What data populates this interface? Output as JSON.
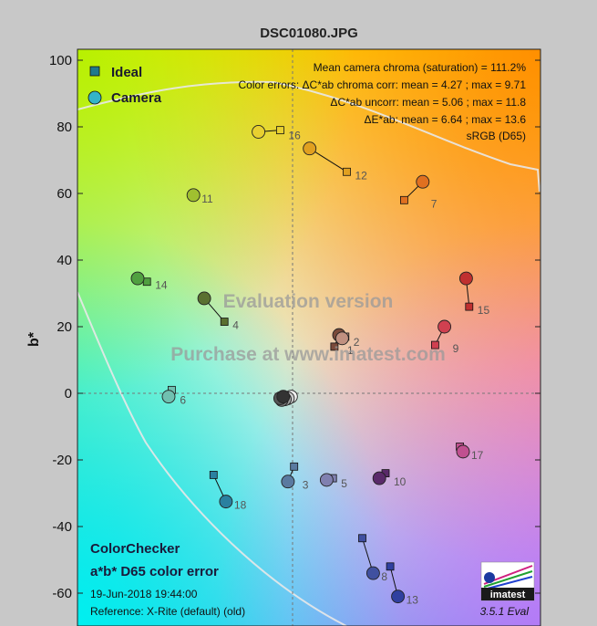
{
  "chart_data": {
    "type": "scatter",
    "title": "DSC01080.JPG",
    "ylabel": "b*",
    "xlim": [
      -70,
      80
    ],
    "ylim": [
      -70,
      100
    ],
    "yticks": [
      100,
      80,
      60,
      40,
      20,
      0,
      -20,
      -40,
      -60
    ],
    "grid": "dashed zero lines",
    "legend_position": "top-left",
    "legend": {
      "ideal": "Ideal",
      "camera": "Camera"
    },
    "annotations": [
      "Mean camera chroma (saturation) = 111.2%",
      "Color errors: ΔC*ab chroma corr:  mean = 4.27 ;  max = 9.71",
      "ΔC*ab uncorr:  mean = 5.06 ;  max = 11.8",
      "ΔE*ab:  mean = 6.64 ;  max = 13.6",
      "sRGB (D65)"
    ],
    "watermark": [
      "Evaluation version",
      "Purchase at www.imatest.com"
    ],
    "footer": {
      "name": "ColorChecker",
      "subtitle": "a*b* D65 color error",
      "date": "19-Jun-2018 19:44:00",
      "reference": "Reference: X-Rite (default) (old)",
      "version": "3.5.1  Eval",
      "logo": "imatest"
    },
    "patches": [
      {
        "id": "1",
        "ideal": [
          13.5,
          14.0
        ],
        "camera": [
          15.0,
          17.5
        ],
        "color": "#7a4a3a"
      },
      {
        "id": "2",
        "ideal": [
          17.0,
          17.0
        ],
        "camera": [
          16.0,
          16.5
        ],
        "color": "#c09080"
      },
      {
        "id": "3",
        "ideal": [
          0.5,
          -22.0
        ],
        "camera": [
          -1.5,
          -26.5
        ],
        "color": "#5a7aa0"
      },
      {
        "id": "4",
        "ideal": [
          -22.0,
          21.5
        ],
        "camera": [
          -28.5,
          28.5
        ],
        "color": "#5a7030"
      },
      {
        "id": "5",
        "ideal": [
          13.0,
          -25.5
        ],
        "camera": [
          11.0,
          -26.0
        ],
        "color": "#8080b0"
      },
      {
        "id": "6",
        "ideal": [
          -39.0,
          1.0
        ],
        "camera": [
          -40.0,
          -1.0
        ],
        "color": "#70c0b0"
      },
      {
        "id": "7",
        "ideal": [
          36.0,
          58.0
        ],
        "camera": [
          42.0,
          63.5
        ],
        "color": "#e07020"
      },
      {
        "id": "8",
        "ideal": [
          22.5,
          -43.5
        ],
        "camera": [
          26.0,
          -54.0
        ],
        "color": "#4050a0"
      },
      {
        "id": "9",
        "ideal": [
          46.0,
          14.5
        ],
        "camera": [
          49.0,
          20.0
        ],
        "color": "#d04050"
      },
      {
        "id": "10",
        "ideal": [
          30.0,
          -24.0
        ],
        "camera": [
          28.0,
          -25.5
        ],
        "color": "#5a2a6a"
      },
      {
        "id": "11",
        "ideal": [
          -32.0,
          59.5
        ],
        "camera": [
          -32.0,
          59.5
        ],
        "color": "#a0c030"
      },
      {
        "id": "12",
        "ideal": [
          17.5,
          66.5
        ],
        "camera": [
          5.5,
          73.5
        ],
        "color": "#e0a020"
      },
      {
        "id": "13",
        "ideal": [
          31.5,
          -52.0
        ],
        "camera": [
          34.0,
          -61.0
        ],
        "color": "#3040a0"
      },
      {
        "id": "14",
        "ideal": [
          -47.0,
          33.5
        ],
        "camera": [
          -50.0,
          34.5
        ],
        "color": "#50a040"
      },
      {
        "id": "15",
        "ideal": [
          57.0,
          26.0
        ],
        "camera": [
          56.0,
          34.5
        ],
        "color": "#c03030"
      },
      {
        "id": "16",
        "ideal": [
          -4.0,
          79.0
        ],
        "camera": [
          -11.0,
          78.5
        ],
        "color": "#e8d030"
      },
      {
        "id": "17",
        "ideal": [
          54.0,
          -16.0
        ],
        "camera": [
          55.0,
          -17.5
        ],
        "color": "#c05090"
      },
      {
        "id": "18",
        "ideal": [
          -25.5,
          -24.5
        ],
        "camera": [
          -21.5,
          -32.5
        ],
        "color": "#2a80a0"
      },
      {
        "id": "n1",
        "ideal": [
          -0.5,
          -1.0
        ],
        "camera": [
          -0.5,
          -1.0
        ],
        "color": "#f0f0f0",
        "nolabel": true
      },
      {
        "id": "n2",
        "ideal": [
          -1.0,
          -1.5
        ],
        "camera": [
          -1.5,
          -1.5
        ],
        "color": "#c8c8c8",
        "nolabel": true
      },
      {
        "id": "n3",
        "ideal": [
          -2.0,
          -2.0
        ],
        "camera": [
          -2.5,
          -1.8
        ],
        "color": "#a0a0a0",
        "nolabel": true
      },
      {
        "id": "n4",
        "ideal": [
          -3.0,
          -2.0
        ],
        "camera": [
          -3.5,
          -2.0
        ],
        "color": "#787878",
        "nolabel": true
      },
      {
        "id": "n5",
        "ideal": [
          -4.0,
          -1.5
        ],
        "camera": [
          -4.0,
          -1.5
        ],
        "color": "#555555",
        "nolabel": true
      },
      {
        "id": "n6",
        "ideal": [
          -3.0,
          -1.0
        ],
        "camera": [
          -3.0,
          -1.0
        ],
        "color": "#333333",
        "nolabel": true
      }
    ]
  }
}
